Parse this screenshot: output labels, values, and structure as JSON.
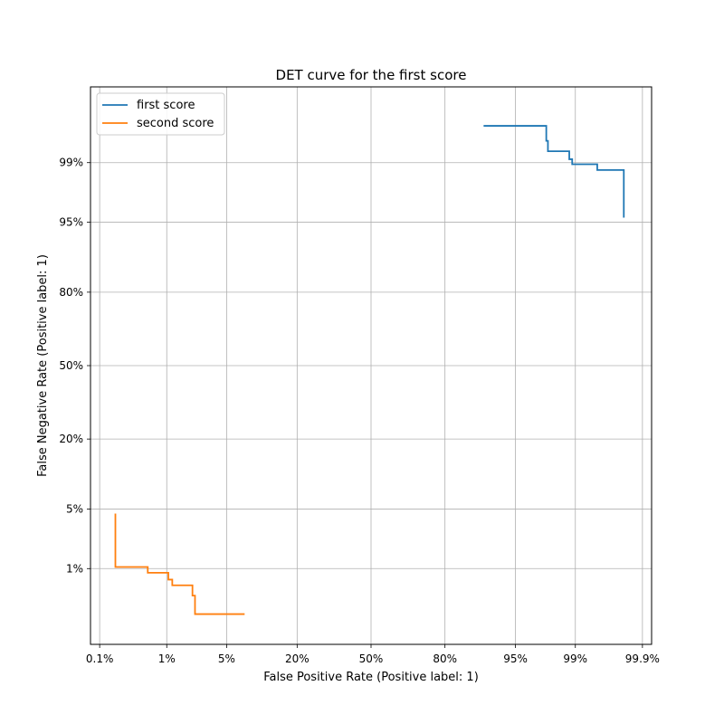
{
  "chart_data": {
    "type": "line",
    "title": "DET curve for the first score",
    "xlabel": "False Positive Rate (Positive label: 1)",
    "ylabel": "False Negative Rate (Positive label: 1)",
    "scale": "normal-deviate (probit)",
    "xlim": [
      0.0007,
      0.9993
    ],
    "ylim": [
      0.0007,
      0.9993
    ],
    "xticks": [
      0.001,
      0.01,
      0.05,
      0.2,
      0.5,
      0.8,
      0.95,
      0.99,
      0.999
    ],
    "xtick_labels": [
      "0.1%",
      "1%",
      "5%",
      "20%",
      "50%",
      "80%",
      "95%",
      "99%",
      "99.9%"
    ],
    "yticks": [
      0.01,
      0.05,
      0.2,
      0.5,
      0.8,
      0.95,
      0.99
    ],
    "ytick_labels": [
      "1%",
      "5%",
      "20%",
      "50%",
      "80%",
      "95%",
      "99%"
    ],
    "grid": true,
    "legend_position": "top-left",
    "series": [
      {
        "name": "first score",
        "color": "#1f77b4",
        "points": [
          [
            0.9,
            0.997
          ],
          [
            0.977,
            0.997
          ],
          [
            0.977,
            0.995
          ],
          [
            0.978,
            0.995
          ],
          [
            0.978,
            0.993
          ],
          [
            0.988,
            0.993
          ],
          [
            0.988,
            0.991
          ],
          [
            0.989,
            0.991
          ],
          [
            0.989,
            0.9895
          ],
          [
            0.995,
            0.9895
          ],
          [
            0.995,
            0.9875
          ],
          [
            0.998,
            0.9875
          ],
          [
            0.998,
            0.955
          ]
        ]
      },
      {
        "name": "second score",
        "color": "#ff7f0e",
        "points": [
          [
            0.0018,
            0.045
          ],
          [
            0.0018,
            0.0105
          ],
          [
            0.0055,
            0.0105
          ],
          [
            0.0055,
            0.0088
          ],
          [
            0.0105,
            0.0088
          ],
          [
            0.0105,
            0.0071
          ],
          [
            0.0118,
            0.0071
          ],
          [
            0.0118,
            0.0059
          ],
          [
            0.021,
            0.0059
          ],
          [
            0.021,
            0.0042
          ],
          [
            0.0225,
            0.0042
          ],
          [
            0.0225,
            0.0022
          ],
          [
            0.075,
            0.0022
          ]
        ]
      }
    ]
  }
}
